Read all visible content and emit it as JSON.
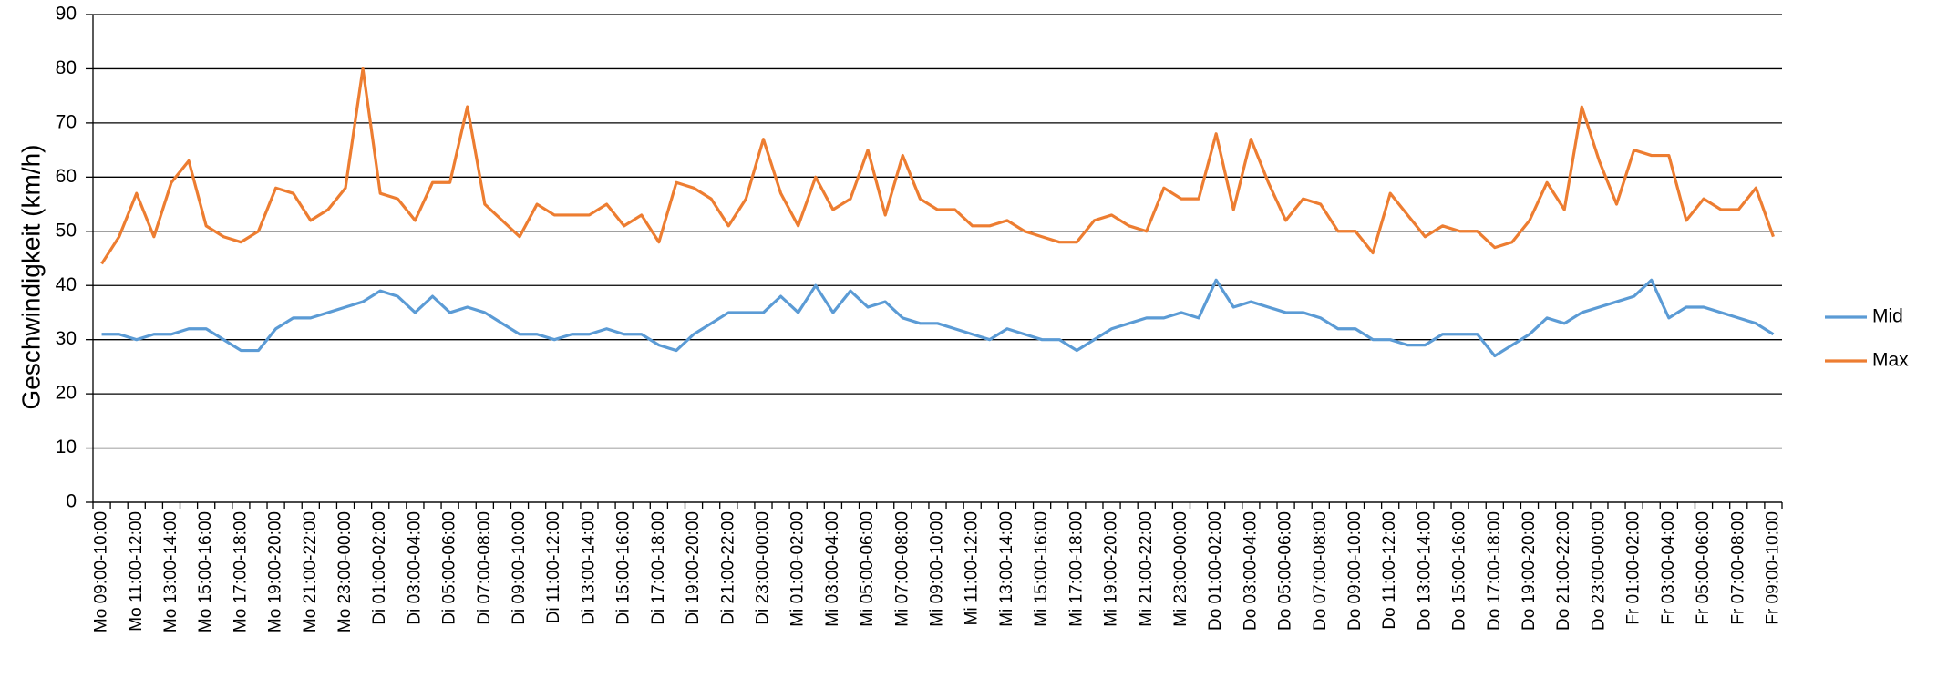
{
  "chart_data": {
    "type": "line",
    "y_label": "Geschwindigkeit (km/h)",
    "categories": [
      "Mo 09:00-10:00",
      null,
      "Mo 11:00-12:00",
      null,
      "Mo 13:00-14:00",
      null,
      "Mo 15:00-16:00",
      null,
      "Mo 17:00-18:00",
      null,
      "Mo 19:00-20:00",
      null,
      "Mo 21:00-22:00",
      null,
      "Mo 23:00-00:00",
      null,
      "Di 01:00-02:00",
      null,
      "Di 03:00-04:00",
      null,
      "Di 05:00-06:00",
      null,
      "Di 07:00-08:00",
      null,
      "Di 09:00-10:00",
      null,
      "Di 11:00-12:00",
      null,
      "Di 13:00-14:00",
      null,
      "Di 15:00-16:00",
      null,
      "Di 17:00-18:00",
      null,
      "Di 19:00-20:00",
      null,
      "Di 21:00-22:00",
      null,
      "Di 23:00-00:00",
      null,
      "Mi 01:00-02:00",
      null,
      "Mi 03:00-04:00",
      null,
      "Mi 05:00-06:00",
      null,
      "Mi 07:00-08:00",
      null,
      "Mi 09:00-10:00",
      null,
      "Mi 11:00-12:00",
      null,
      "Mi 13:00-14:00",
      null,
      "Mi 15:00-16:00",
      null,
      "Mi 17:00-18:00",
      null,
      "Mi 19:00-20:00",
      null,
      "Mi 21:00-22:00",
      null,
      "Mi 23:00-00:00",
      null,
      "Do 01:00-02:00",
      null,
      "Do 03:00-04:00",
      null,
      "Do 05:00-06:00",
      null,
      "Do 07:00-08:00",
      null,
      "Do 09:00-10:00",
      null,
      "Do 11:00-12:00",
      null,
      "Do 13:00-14:00",
      null,
      "Do 15:00-16:00",
      null,
      "Do 17:00-18:00",
      null,
      "Do 19:00-20:00",
      null,
      "Do 21:00-22:00",
      null,
      "Do 23:00-00:00",
      null,
      "Fr 01:00-02:00",
      null,
      "Fr 03:00-04:00",
      null,
      "Fr 05:00-06:00",
      null,
      "Fr 07:00-08:00",
      null,
      "Fr 09:00-10:00"
    ],
    "series": [
      {
        "name": "Mid",
        "color": "#5b9bd5",
        "values": [
          31,
          31,
          30,
          31,
          31,
          32,
          32,
          30,
          28,
          28,
          32,
          34,
          34,
          35,
          36,
          37,
          39,
          38,
          35,
          38,
          35,
          36,
          35,
          33,
          31,
          31,
          30,
          31,
          31,
          32,
          31,
          31,
          29,
          28,
          31,
          33,
          35,
          35,
          35,
          38,
          35,
          40,
          35,
          39,
          36,
          37,
          34,
          33,
          33,
          32,
          31,
          30,
          32,
          31,
          30,
          30,
          28,
          30,
          32,
          33,
          34,
          34,
          35,
          34,
          41,
          36,
          37,
          36,
          35,
          35,
          34,
          32,
          32,
          30,
          30,
          29,
          29,
          31,
          31,
          31,
          27,
          29,
          31,
          34,
          33,
          35,
          36,
          37,
          38,
          41,
          34,
          36,
          36,
          35,
          34,
          33,
          31
        ]
      },
      {
        "name": "Max",
        "color": "#ed7d31",
        "values": [
          44,
          49,
          57,
          49,
          59,
          63,
          51,
          49,
          48,
          50,
          58,
          57,
          52,
          54,
          58,
          80,
          57,
          56,
          52,
          59,
          59,
          73,
          55,
          52,
          49,
          55,
          53,
          53,
          53,
          55,
          51,
          53,
          48,
          59,
          58,
          56,
          51,
          56,
          67,
          57,
          51,
          60,
          54,
          56,
          65,
          53,
          64,
          56,
          54,
          54,
          51,
          51,
          52,
          50,
          49,
          48,
          48,
          52,
          53,
          51,
          50,
          58,
          56,
          56,
          68,
          54,
          67,
          59,
          52,
          56,
          55,
          50,
          50,
          46,
          57,
          53,
          49,
          51,
          50,
          50,
          47,
          48,
          52,
          59,
          54,
          73,
          63,
          55,
          65,
          64,
          64,
          52,
          56,
          54,
          54,
          58,
          49
        ]
      }
    ],
    "ylim": [
      0,
      90
    ],
    "yticks": [
      0,
      10,
      20,
      30,
      40,
      50,
      60,
      70,
      80,
      90
    ],
    "grid": true,
    "legend": "right"
  }
}
